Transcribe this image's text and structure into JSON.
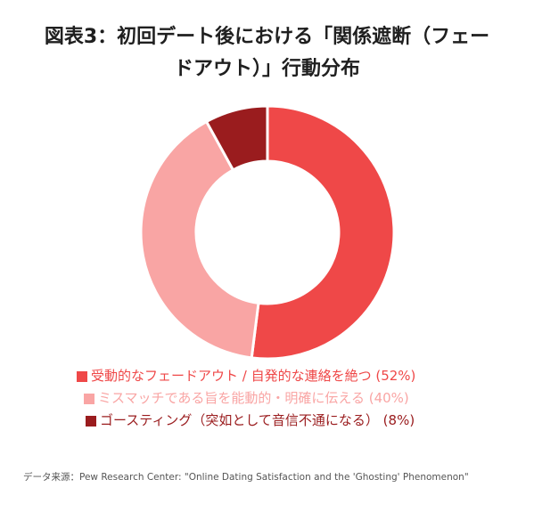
{
  "title": "図表3：初回デート後における「関係遮断（フェードアウト）」行動分布",
  "title_lines": [
    "図表3：初回デート後における「関係遮断（フェー",
    "ドアウト）」行動分布"
  ],
  "chart_data": {
    "type": "pie",
    "donut": true,
    "title": "図表3：初回デート後における「関係遮断（フェードアウト）」行動分布",
    "categories": [
      "受動的なフェードアウト / 自発的な連絡を絶つ",
      "ミスマッチである旨を能動的・明確に伝える",
      "ゴースティング（突如として音信不通になる）"
    ],
    "values": [
      52,
      40,
      8
    ],
    "colors": [
      "#ef4848",
      "#f9a5a4",
      "#9a1c1e"
    ],
    "legend_labels": [
      "受動的なフェードアウト / 自発的な連絡を絶つ (52%)",
      "ミスマッチである旨を能動的・明確に伝える (40%)",
      "ゴースティング（突如として音信不通になる） (8%)"
    ],
    "legend_position": "bottom"
  },
  "source": "データ来源：Pew Research Center: \"Online Dating Satisfaction and the 'Ghosting' Phenomenon\""
}
